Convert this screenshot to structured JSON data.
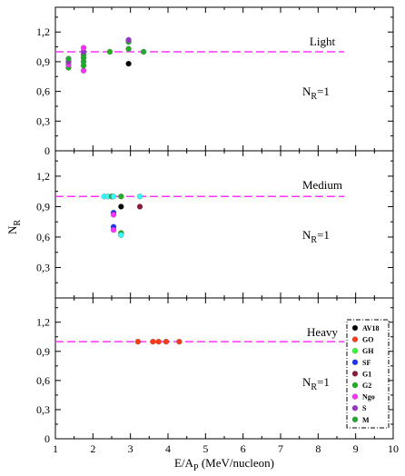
{
  "chart_data": [
    {
      "type": "scatter",
      "panel": "Light",
      "label": "Light",
      "annotation": "N",
      "annotation_sub": "R",
      "annotation_tail": "=1",
      "reference_line": 1.0,
      "reference_line_xrange": [
        1.0,
        8.7
      ],
      "ylim": [
        0,
        1.45
      ],
      "yticks": [
        "0",
        "0,3",
        "0,6",
        "0,9",
        "1,2"
      ],
      "ytick_values": [
        0,
        0.3,
        0.6,
        0.9,
        1.2
      ],
      "points": [
        {
          "x": 1.35,
          "y": 0.84,
          "series": "G2"
        },
        {
          "x": 1.35,
          "y": 0.87,
          "series": "Ngo"
        },
        {
          "x": 1.35,
          "y": 0.9,
          "series": "S"
        },
        {
          "x": 1.35,
          "y": 0.93,
          "series": "M"
        },
        {
          "x": 1.75,
          "y": 0.81,
          "series": "Ngo"
        },
        {
          "x": 1.75,
          "y": 0.86,
          "series": "G2"
        },
        {
          "x": 1.75,
          "y": 0.9,
          "series": "M"
        },
        {
          "x": 1.75,
          "y": 0.94,
          "series": "G2"
        },
        {
          "x": 1.75,
          "y": 0.97,
          "series": "M"
        },
        {
          "x": 1.75,
          "y": 1.0,
          "series": "S"
        },
        {
          "x": 1.75,
          "y": 1.04,
          "series": "Ngo"
        },
        {
          "x": 2.45,
          "y": 1.0,
          "series": "G2"
        },
        {
          "x": 2.95,
          "y": 0.88,
          "series": "AV18"
        },
        {
          "x": 2.95,
          "y": 1.03,
          "series": "G2"
        },
        {
          "x": 2.95,
          "y": 1.1,
          "series": "M"
        },
        {
          "x": 2.95,
          "y": 1.12,
          "series": "S"
        },
        {
          "x": 3.35,
          "y": 1.0,
          "series": "M"
        }
      ]
    },
    {
      "type": "scatter",
      "panel": "Medium",
      "label": "Medium",
      "annotation": "N",
      "annotation_sub": "R",
      "annotation_tail": "=1",
      "reference_line": 1.0,
      "reference_line_xrange": [
        1.0,
        8.7
      ],
      "ylim": [
        0,
        1.45
      ],
      "yticks": [
        "0,3",
        "0,6",
        "0,9",
        "1,2"
      ],
      "ytick_values": [
        0.3,
        0.6,
        0.9,
        1.2
      ],
      "points": [
        {
          "x": 2.3,
          "y": 1.0,
          "series": "GH"
        },
        {
          "x": 2.4,
          "y": 1.0,
          "series": "GH"
        },
        {
          "x": 2.5,
          "y": 1.0,
          "series": "M"
        },
        {
          "x": 2.55,
          "y": 0.84,
          "series": "SF"
        },
        {
          "x": 2.55,
          "y": 0.82,
          "series": "Ngo"
        },
        {
          "x": 2.55,
          "y": 0.7,
          "series": "SF"
        },
        {
          "x": 2.55,
          "y": 0.67,
          "series": "Ngo"
        },
        {
          "x": 2.55,
          "y": 1.0,
          "series": "GH"
        },
        {
          "x": 2.75,
          "y": 1.0,
          "series": "G2"
        },
        {
          "x": 2.75,
          "y": 0.9,
          "series": "AV18"
        },
        {
          "x": 2.75,
          "y": 0.64,
          "series": "G2"
        },
        {
          "x": 2.75,
          "y": 0.62,
          "series": "GH"
        },
        {
          "x": 3.25,
          "y": 1.0,
          "series": "GH"
        },
        {
          "x": 3.25,
          "y": 0.9,
          "series": "G1"
        }
      ]
    },
    {
      "type": "scatter",
      "panel": "Heavy",
      "label": "Heavy",
      "annotation": "N",
      "annotation_sub": "R",
      "annotation_tail": "=1",
      "reference_line": 1.0,
      "reference_line_xrange": [
        1.0,
        8.7
      ],
      "ylim": [
        0,
        1.45
      ],
      "yticks": [
        "0",
        "0,3",
        "0,6",
        "0,9",
        "1,2"
      ],
      "ytick_values": [
        0,
        0.3,
        0.6,
        0.9,
        1.2
      ],
      "points": [
        {
          "x": 3.2,
          "y": 1.0,
          "series": "GO"
        },
        {
          "x": 3.6,
          "y": 1.0,
          "series": "GO"
        },
        {
          "x": 3.75,
          "y": 1.0,
          "series": "GO"
        },
        {
          "x": 3.95,
          "y": 1.0,
          "series": "GO"
        },
        {
          "x": 4.3,
          "y": 1.0,
          "series": "GO"
        }
      ],
      "legend": {
        "placement": "right",
        "entries": [
          {
            "name": "AV18",
            "color": "#000000"
          },
          {
            "name": "GO",
            "color": "#ff3a1a"
          },
          {
            "name": "GH",
            "color": "#33ff33"
          },
          {
            "name": "SF",
            "color": "#1a33ff"
          },
          {
            "name": "G1",
            "color": "#8b1a3a"
          },
          {
            "name": "G2",
            "color": "#1fb01f"
          },
          {
            "name": "Ngo",
            "color": "#ff33ff"
          },
          {
            "name": "S",
            "color": "#9933cc"
          },
          {
            "name": "M",
            "color": "#22aa33"
          }
        ]
      }
    }
  ],
  "x_axis": {
    "xlim": [
      1,
      10
    ],
    "ticks": [
      1,
      2,
      3,
      4,
      5,
      6,
      7,
      8,
      9,
      10
    ],
    "tick_labels": [
      "1",
      "2",
      "3",
      "4",
      "5",
      "6",
      "7",
      "8",
      "9",
      "10"
    ],
    "label_main": "E/A",
    "label_sub": "P",
    "label_tail": " (MeV/nucleon)"
  },
  "y_axis": {
    "label_main": "N",
    "label_sub": "R"
  },
  "series_colors": {
    "AV18": "#000000",
    "GO": "#ff3a1a",
    "GH": "#33ff33",
    "SF": "#1a33ff",
    "G1": "#8b1a3a",
    "G2": "#1fb01f",
    "Ngo": "#ff33ff",
    "S": "#9933cc",
    "M": "#22aa33"
  },
  "colors": {
    "reference_line": "#ff33ff",
    "axis": "#000000",
    "GH_fill": "#33ffff"
  }
}
